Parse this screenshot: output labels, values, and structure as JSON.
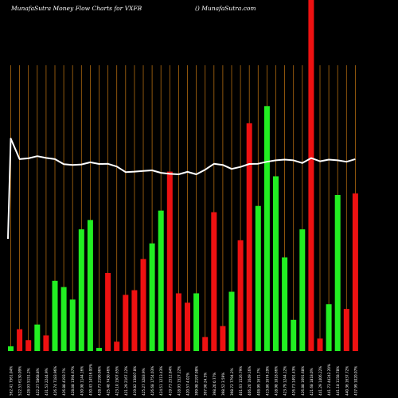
{
  "header": {
    "left": "MunafaSutra  Money Flow  Charts for VXFB",
    "right": "() MunafaSutra.com"
  },
  "colors": {
    "background": "#000000",
    "grid": "#b06a10",
    "up": "#22ee22",
    "down": "#ee1111",
    "price": "#ffffff",
    "label": "#ffffff"
  },
  "chart_data": {
    "type": "bar",
    "x_labels": [
      "562.41  7561.04%",
      "522.53  6130.09%",
      "428.93  5151.2%",
      "422.27  5868.8%",
      "431.53  2244.9%",
      "426.74  7183.96%",
      "426.88  4193.7%",
      "428.88  1394.67%",
      "430.98  1144.16%",
      "430.43  14516.00%",
      "428.73  2190.06%",
      "425.48  7430.46%",
      "423.10  1507.65%",
      "421.29  2167.12%",
      "419.82  13807.8%",
      "425.27  3283.9%",
      "426.68  1754.03%",
      "424.51  1213.43%",
      "419.73  2512.84%",
      "418.93  1527.22%",
      "420.57  4.02%",
      "399.98  2197.08%",
      "397.90  24.5%",
      "398.20  0.77%",
      "398.52  3.59%",
      "398.72  7794.2%",
      "401.63  1526.79%",
      "406.20  1649.16%",
      "408.99  1671.7%",
      "413.86  1674.19%",
      "418.98  1018.66%",
      "423.79  1244.12%",
      "426.73  1491.43%",
      "426.88  1691.68%",
      "421.68  1818.0%",
      "441.29  1406.22%",
      "441.73  44242.20%",
      "441.18  1158.78%",
      "440.36  1637.72%",
      "437.99  1020.07%"
    ],
    "direction": [
      "up",
      "down",
      "down",
      "up",
      "down",
      "up",
      "up",
      "up",
      "up",
      "up",
      "up",
      "down",
      "down",
      "down",
      "down",
      "down",
      "up",
      "up",
      "down",
      "down",
      "down",
      "up",
      "down",
      "down",
      "down",
      "up",
      "down",
      "down",
      "up",
      "up",
      "up",
      "up",
      "up",
      "up",
      "down",
      "down",
      "up",
      "up",
      "down",
      "down"
    ],
    "volume": [
      3,
      14,
      7,
      17,
      10,
      45,
      41,
      33,
      78,
      84,
      2,
      50,
      6,
      36,
      39,
      59,
      69,
      90,
      115,
      37,
      31,
      37,
      9,
      89,
      16,
      38,
      71,
      146,
      93,
      157,
      112,
      60,
      20,
      78,
      225,
      8,
      30,
      100,
      27,
      101
    ],
    "price": [
      430.62,
      427.12,
      427.25,
      427.62,
      427.33,
      427.12,
      426.25,
      426.12,
      426.21,
      426.58,
      426.29,
      426.33,
      425.87,
      424.92,
      425.0,
      425.12,
      425.21,
      424.79,
      424.62,
      424.54,
      424.96,
      424.54,
      425.33,
      426.33,
      426.13,
      425.46,
      425.79,
      426.29,
      426.34,
      426.67,
      426.92,
      427.04,
      426.92,
      426.46,
      427.29,
      426.75,
      427.04,
      426.92,
      426.67,
      427.12
    ]
  }
}
